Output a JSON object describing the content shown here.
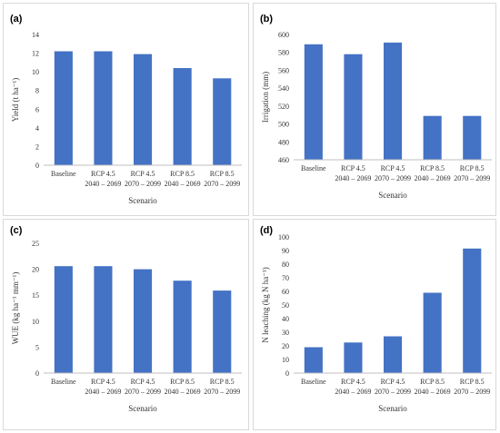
{
  "chart_data": [
    {
      "panel": "(a)",
      "type": "bar",
      "categories": [
        [
          "Baseline"
        ],
        [
          "RCP 4.5",
          "2040 – 2069"
        ],
        [
          "RCP 4.5",
          "2070 – 2099"
        ],
        [
          "RCP 8.5",
          "2040 – 2069"
        ],
        [
          "RCP 8.5",
          "2070 – 2099"
        ]
      ],
      "values": [
        12.2,
        12.2,
        11.9,
        10.4,
        9.3
      ],
      "xlabel": "Scenario",
      "ylabel": "Yield (t ha⁻¹)",
      "ylim": [
        0,
        14
      ],
      "yticks": [
        0,
        2,
        4,
        6,
        8,
        10,
        12,
        14
      ],
      "grid": false,
      "bar_color": "#4472c4"
    },
    {
      "panel": "(b)",
      "type": "bar",
      "categories": [
        [
          "Baseline"
        ],
        [
          "RCP 4.5",
          "2040 – 2069"
        ],
        [
          "RCP 4.5",
          "2070 – 2099"
        ],
        [
          "RCP 8.5",
          "2040 – 2069"
        ],
        [
          "RCP 8.5",
          "2070 – 2099"
        ]
      ],
      "values": [
        589,
        578,
        591,
        509,
        509
      ],
      "xlabel": "Scenario",
      "ylabel": "Irrigation (mm)",
      "ylim": [
        460,
        600
      ],
      "yticks": [
        460,
        480,
        500,
        520,
        540,
        560,
        580,
        600
      ],
      "grid": false,
      "bar_color": "#4472c4"
    },
    {
      "panel": "(c)",
      "type": "bar",
      "categories": [
        [
          "Baseline"
        ],
        [
          "RCP 4.5",
          "2040 – 2069"
        ],
        [
          "RCP 4.5",
          "2070 – 2099"
        ],
        [
          "RCP 8.5",
          "2040 – 2069"
        ],
        [
          "RCP 8.5",
          "2070 – 2099"
        ]
      ],
      "values": [
        20.6,
        20.6,
        20.0,
        17.8,
        15.9
      ],
      "xlabel": "Scenario",
      "ylabel": "WUE (kg ha⁻¹ mm⁻¹)",
      "ylim": [
        0,
        25
      ],
      "yticks": [
        0,
        5,
        10,
        15,
        20,
        25
      ],
      "grid": false,
      "bar_color": "#4472c4"
    },
    {
      "panel": "(d)",
      "type": "bar",
      "categories": [
        [
          "Baseline"
        ],
        [
          "RCP 4.5",
          "2040 – 2069"
        ],
        [
          "RCP 4.5",
          "2070 – 2099"
        ],
        [
          "RCP 8.5",
          "2040 – 2069"
        ],
        [
          "RCP 8.5",
          "2070 – 2099"
        ]
      ],
      "values": [
        19,
        22.5,
        27,
        59,
        91.5
      ],
      "xlabel": "Scenario",
      "ylabel": "N leaching (kg N ha⁻¹)",
      "ylim": [
        0,
        100
      ],
      "yticks": [
        0,
        10,
        20,
        30,
        40,
        50,
        60,
        70,
        80,
        90,
        100
      ],
      "grid": false,
      "bar_color": "#4472c4"
    }
  ]
}
